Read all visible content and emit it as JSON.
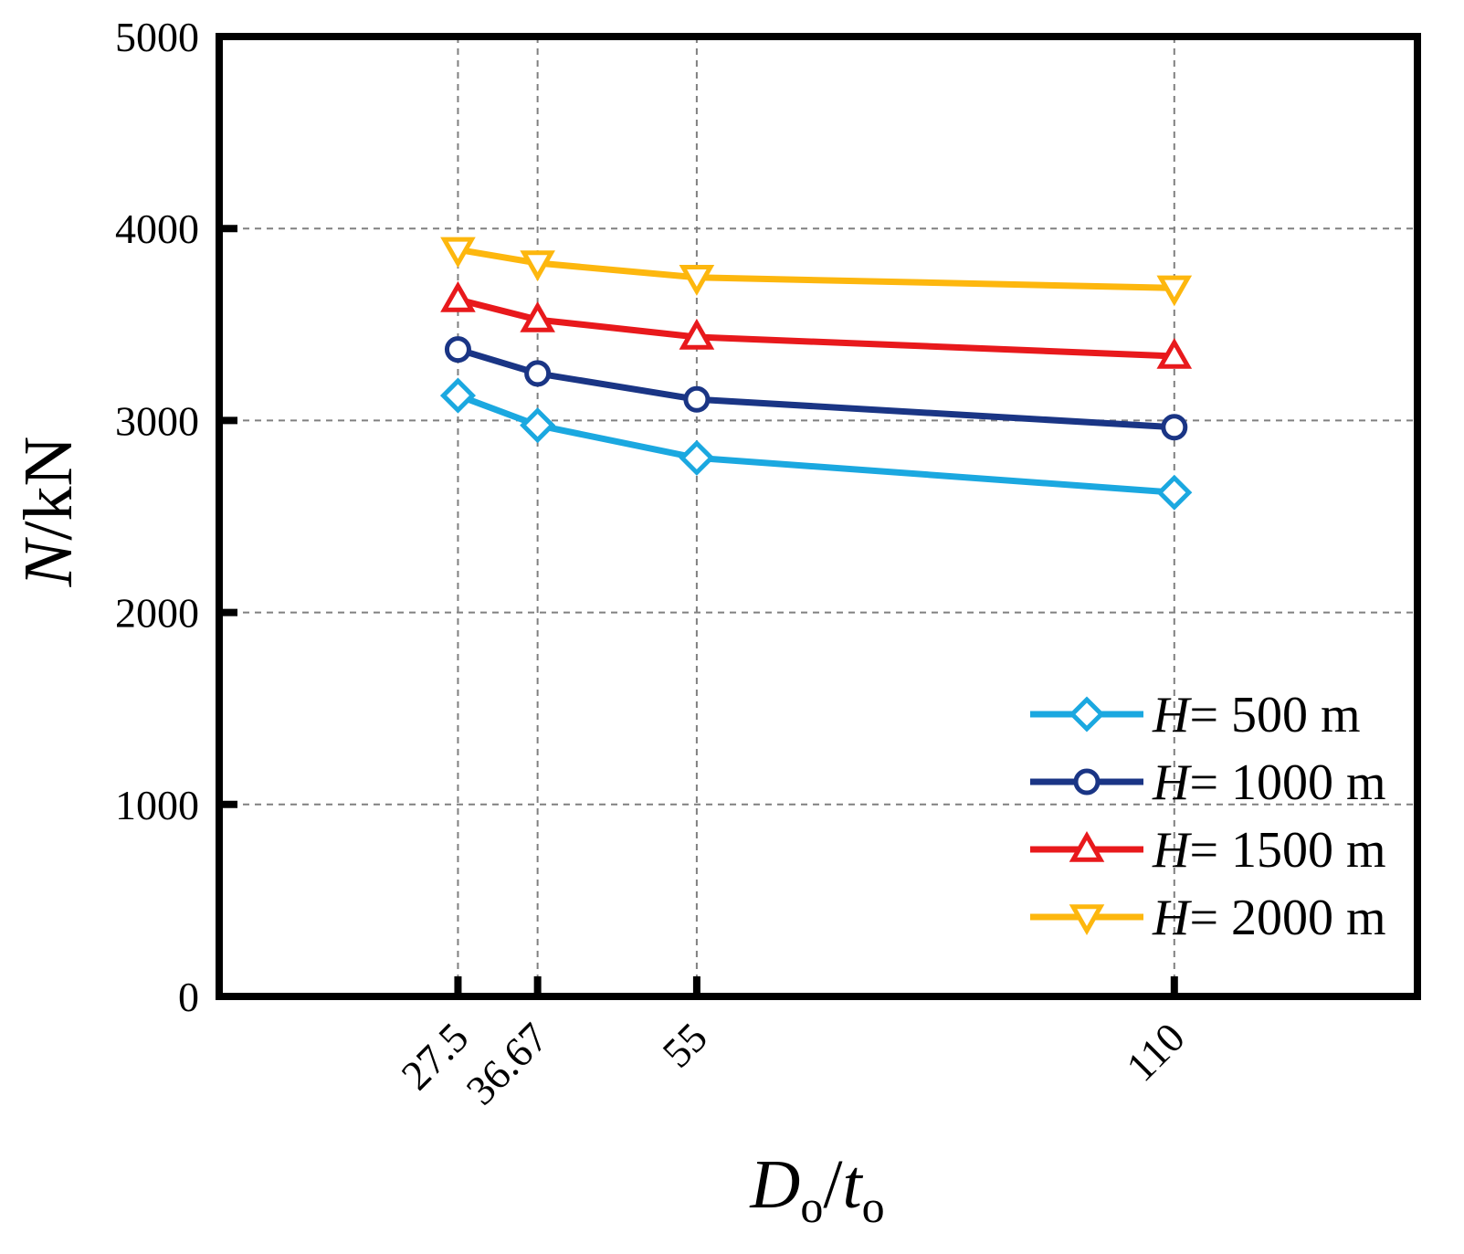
{
  "chart_data": {
    "type": "line",
    "x": [
      27.5,
      36.67,
      55,
      110
    ],
    "x_tick_labels": [
      "27.5",
      "36.67",
      "55",
      "110"
    ],
    "xlim": [
      0,
      138
    ],
    "ylim": [
      0,
      5000
    ],
    "y_ticks": [
      0,
      1000,
      2000,
      3000,
      4000,
      5000
    ],
    "y_tick_labels": [
      "0",
      "1000",
      "2000",
      "3000",
      "4000",
      "5000"
    ],
    "grid": true,
    "legend_position": "bottom-right",
    "xlabel": {
      "main": "D",
      "sub1": "o",
      "sep": "/",
      "main2": "t",
      "sub2": "o"
    },
    "ylabel": {
      "var": "N",
      "unit": "/kN"
    },
    "series": [
      {
        "name": "500 m",
        "prefix": "H",
        "eq": "=",
        "marker": "diamond",
        "color": "#1ba8e0",
        "values": [
          3130,
          2975,
          2805,
          2625
        ]
      },
      {
        "name": "1000 m",
        "prefix": "H",
        "eq": "=",
        "marker": "circle",
        "color": "#1a3585",
        "values": [
          3370,
          3245,
          3110,
          2965
        ]
      },
      {
        "name": "1500 m",
        "prefix": "H",
        "eq": "=",
        "marker": "triangle-up",
        "color": "#e8191c",
        "values": [
          3630,
          3525,
          3435,
          3335
        ]
      },
      {
        "name": "2000 m",
        "prefix": "H",
        "eq": "=",
        "marker": "triangle-down",
        "color": "#fdb70e",
        "values": [
          3890,
          3820,
          3745,
          3690
        ]
      }
    ]
  }
}
